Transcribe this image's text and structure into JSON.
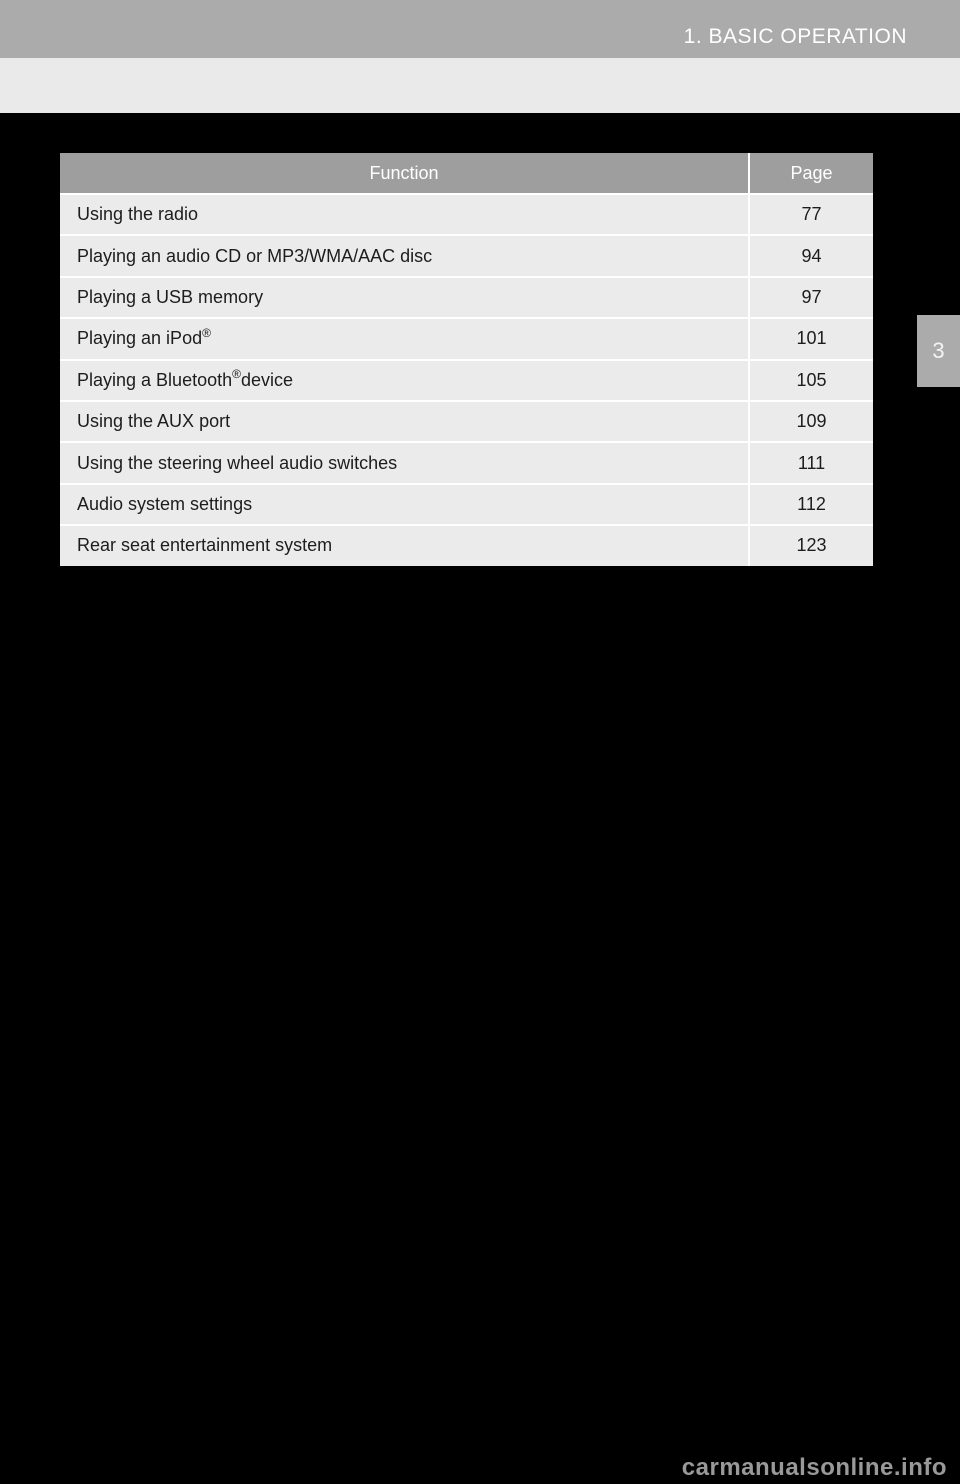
{
  "page": {
    "header": {
      "title": "1. BASIC OPERATION"
    },
    "chapter_tab": "3",
    "watermark": "carmanualsonline.info"
  },
  "table": {
    "columns": [
      "Function",
      "Page"
    ],
    "rows": [
      {
        "function": "Using the radio",
        "sup": "",
        "suffix": "",
        "page": "77"
      },
      {
        "function": "Playing an audio CD or MP3/WMA/AAC disc",
        "sup": "",
        "suffix": "",
        "page": "94"
      },
      {
        "function": "Playing a USB memory",
        "sup": "",
        "suffix": "",
        "page": "97"
      },
      {
        "function": "Playing an iPod",
        "sup": "®",
        "suffix": "",
        "page": "101"
      },
      {
        "function": "Playing a Bluetooth",
        "sup": "®",
        "suffix": " device",
        "page": "105"
      },
      {
        "function": "Using the AUX port",
        "sup": "",
        "suffix": "",
        "page": "109"
      },
      {
        "function": "Using the steering wheel audio switches",
        "sup": "",
        "suffix": "",
        "page": "111"
      },
      {
        "function": "Audio system settings",
        "sup": "",
        "suffix": "",
        "page": "112"
      },
      {
        "function": "Rear seat entertainment system",
        "sup": "",
        "suffix": "",
        "page": "123"
      }
    ]
  },
  "colors": {
    "page_background": "#000000",
    "header_bar": "#ababab",
    "header_strip": "#eaeaea",
    "table_header": "#9e9e9e",
    "table_row": "#ebebeb",
    "separator": "#ffffff",
    "watermark": "#999999"
  }
}
